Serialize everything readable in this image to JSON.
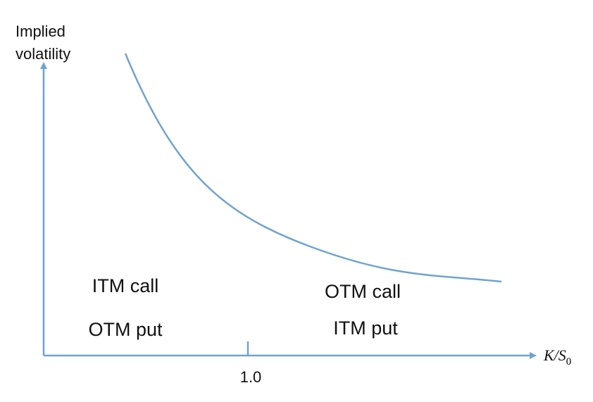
{
  "y_axis": {
    "label_lines": [
      "Implied",
      "volatility"
    ]
  },
  "x_axis": {
    "label": "K/S",
    "label_subscript": "0",
    "tick": "1.0"
  },
  "regions": {
    "left": [
      "ITM call",
      "OTM put"
    ],
    "right": [
      "OTM call",
      "ITM put"
    ]
  }
}
